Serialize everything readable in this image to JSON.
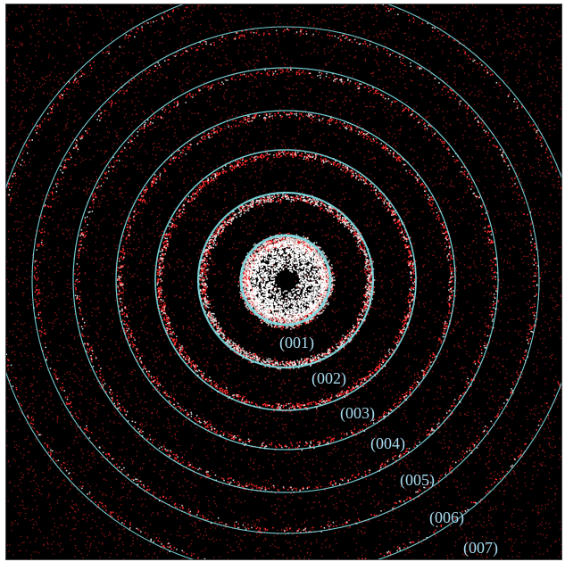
{
  "image": {
    "background_color": "#000000",
    "scatter_color": "#ff2a2a",
    "ring_color": "#7fe0e6",
    "hot_color": "#ffffff"
  },
  "rings": [
    {
      "label": "(001)"
    },
    {
      "label": "(002)"
    },
    {
      "label": "(003)"
    },
    {
      "label": "(004)"
    },
    {
      "label": "(005)"
    },
    {
      "label": "(006)"
    },
    {
      "label": "(007)"
    }
  ]
}
